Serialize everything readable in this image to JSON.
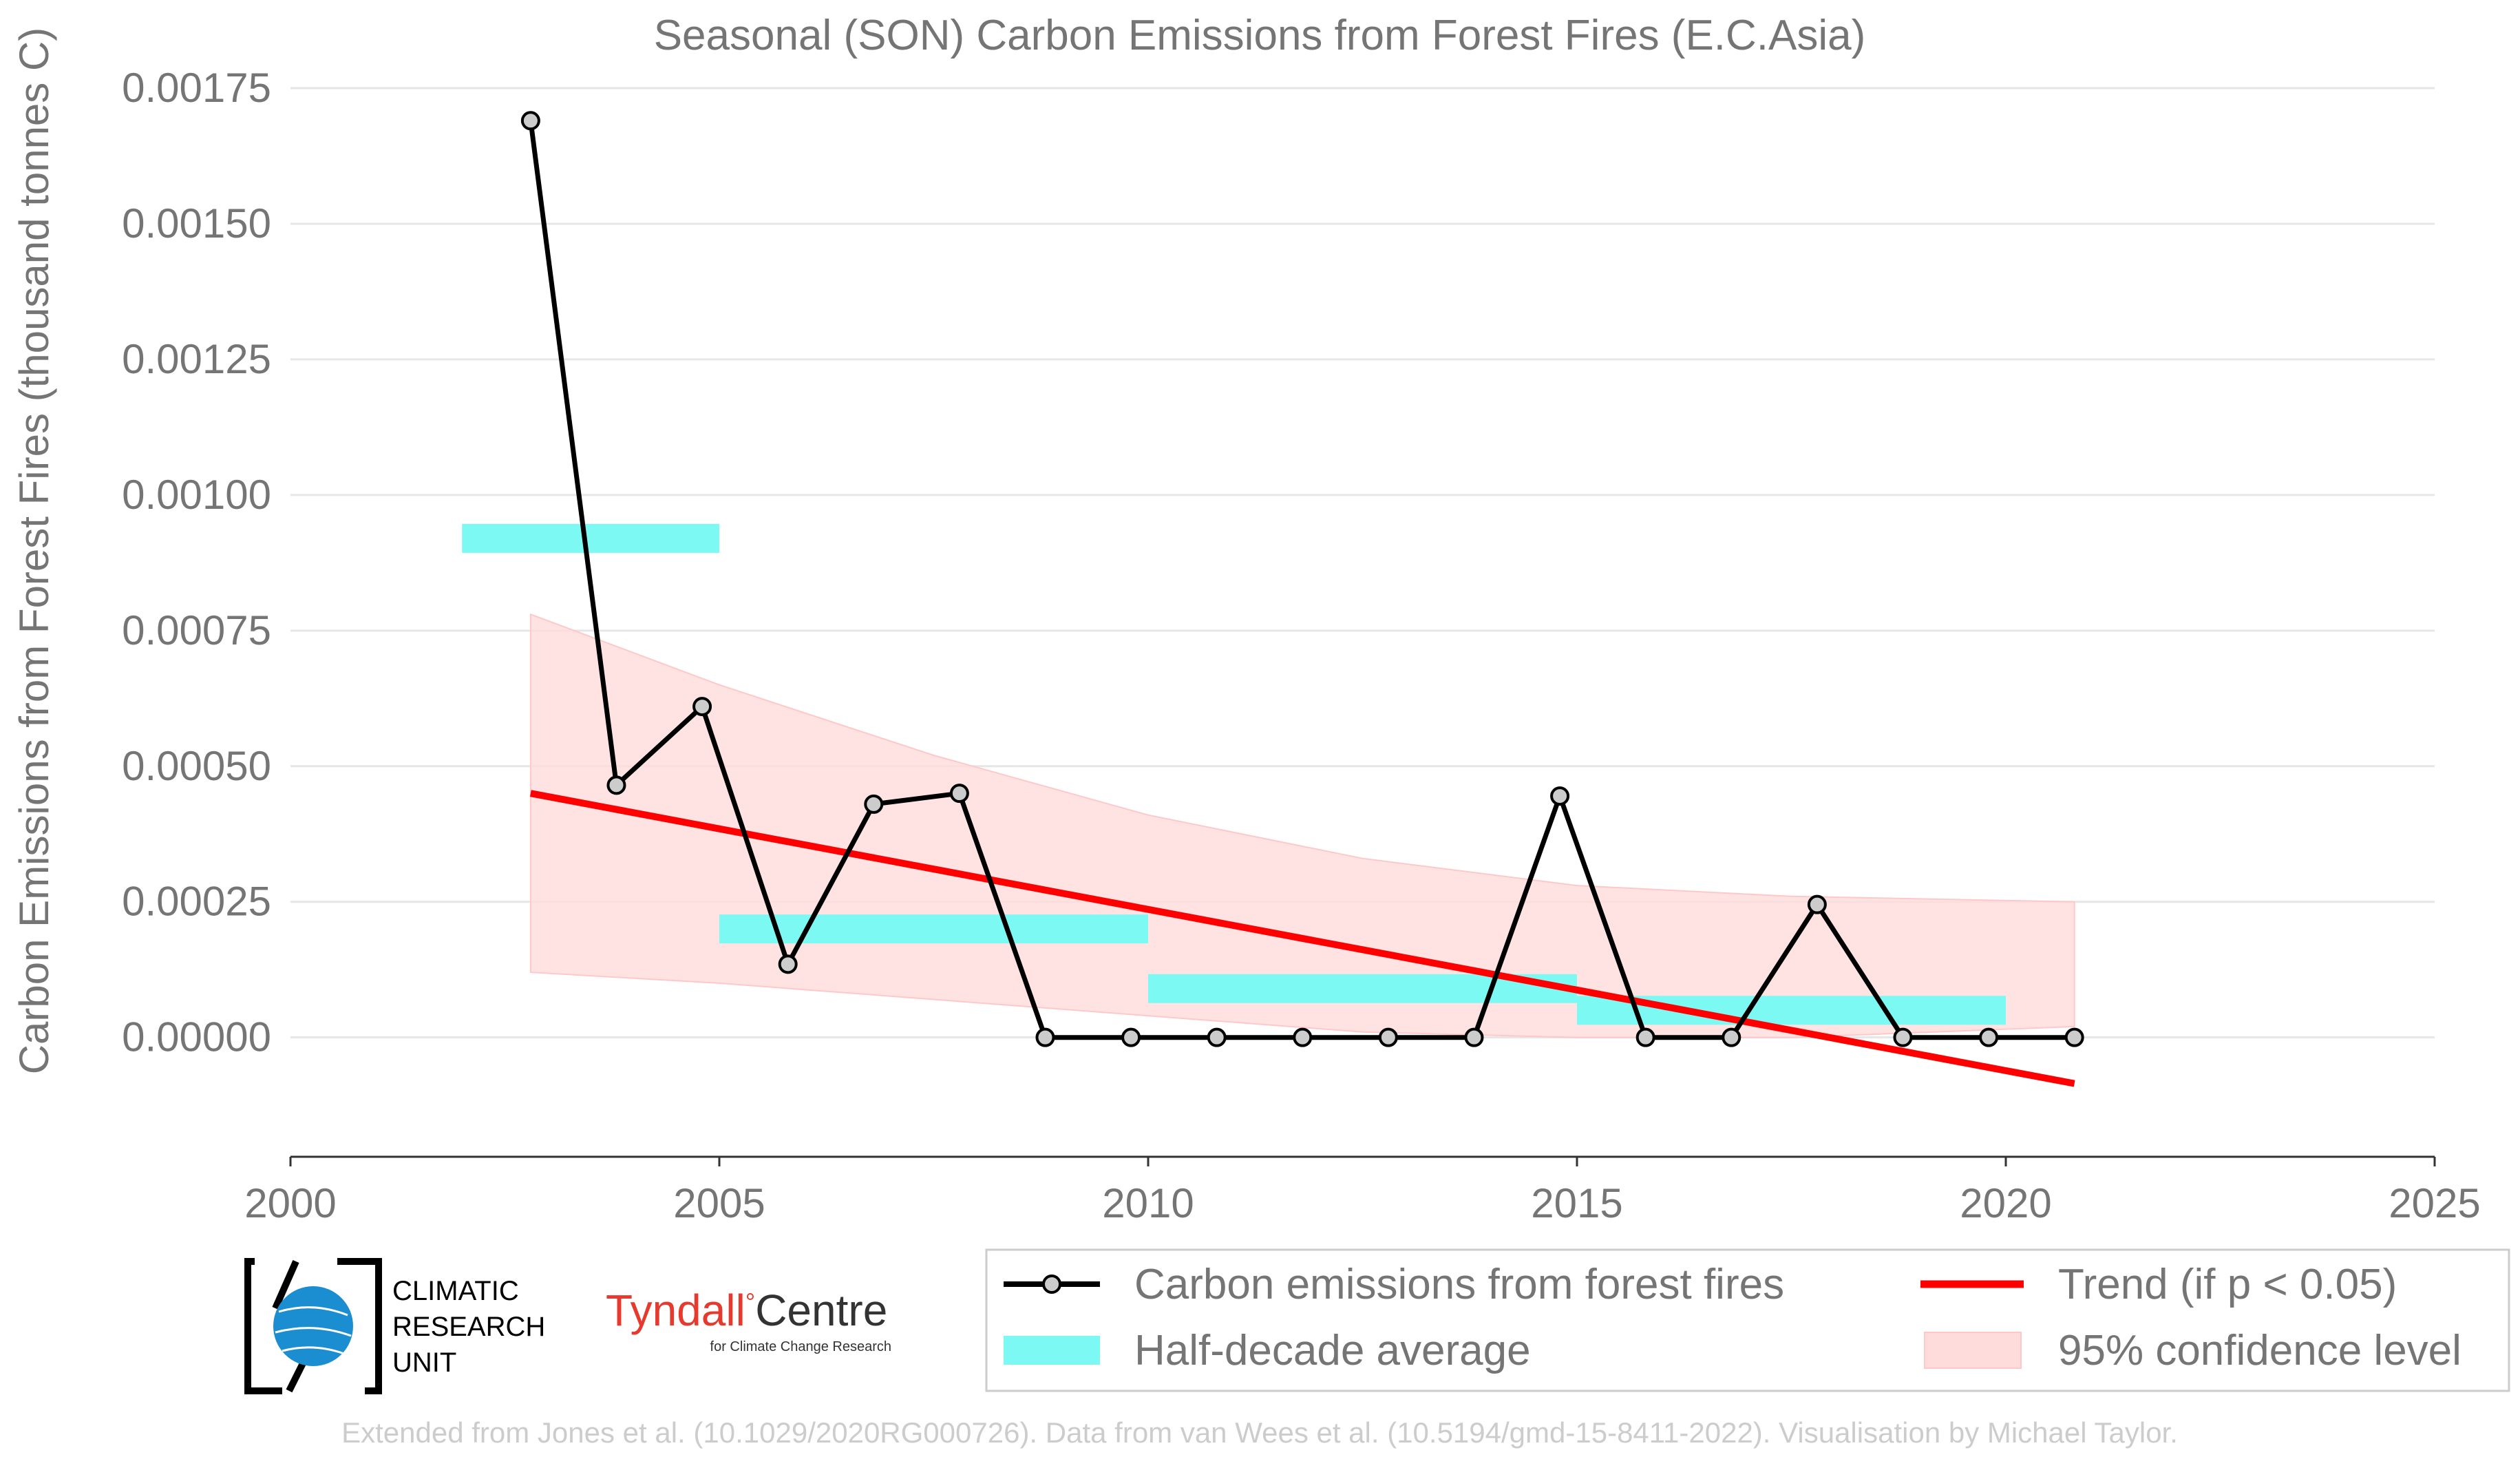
{
  "chart_data": {
    "type": "line",
    "title": "Seasonal (SON) Carbon Emissions from Forest Fires (E.C.Asia)",
    "xlabel": "",
    "ylabel": "Carbon Emissions from Forest Fires (thousand tonnes C)",
    "xlim": [
      2000,
      2025
    ],
    "ylim": [
      -0.00022,
      0.00175
    ],
    "x_ticks": [
      "2000",
      "2005",
      "2010",
      "2015",
      "2020",
      "2025"
    ],
    "y_ticks": [
      "0.00000",
      "0.00025",
      "0.00050",
      "0.00075",
      "0.00100",
      "0.00125",
      "0.00150",
      "0.00175"
    ],
    "grid": "horizontal",
    "legend_position": "bottom-right",
    "series": [
      {
        "name": "Carbon emissions from forest fires",
        "color": "#000000",
        "x": [
          2002.8,
          2003.8,
          2004.8,
          2005.8,
          2006.8,
          2007.8,
          2008.8,
          2009.8,
          2010.8,
          2011.8,
          2012.8,
          2013.8,
          2014.8,
          2015.8,
          2016.8,
          2017.8,
          2018.8,
          2019.8,
          2020.8
        ],
        "y": [
          0.00169,
          0.000465,
          0.00061,
          0.000135,
          0.00043,
          0.00045,
          0.0,
          0.0,
          0.0,
          0.0,
          0.0,
          0.0,
          0.000445,
          0.0,
          0.0,
          0.000245,
          0.0,
          0.0,
          0.0
        ]
      },
      {
        "name": "Trend (if p < 0.05)",
        "color": "#ff0000",
        "x": [
          2002.8,
          2020.8
        ],
        "y": [
          0.00045,
          -8.5e-05
        ]
      },
      {
        "name": "Half-decade average",
        "color": "#7df9f4",
        "segments": [
          {
            "x0": 2002,
            "x1": 2005,
            "y": 0.00092
          },
          {
            "x0": 2005,
            "x1": 2010,
            "y": 0.0002
          },
          {
            "x0": 2010,
            "x1": 2015,
            "y": 9e-05
          },
          {
            "x0": 2015,
            "x1": 2020,
            "y": 5e-05
          }
        ]
      },
      {
        "name": "95% confidence level",
        "color": "#ffdcdc",
        "x": [
          2002.8,
          2005,
          2007.5,
          2010,
          2012.5,
          2015,
          2017.5,
          2020.8
        ],
        "upper": [
          0.00078,
          0.00065,
          0.00052,
          0.00041,
          0.00033,
          0.00028,
          0.00026,
          0.00025
        ],
        "lower": [
          0.00012,
          0.0001,
          7e-05,
          4e-05,
          1e-05,
          0.0,
          0.0,
          2e-05
        ]
      }
    ]
  },
  "legend": {
    "emissions": "Carbon emissions from forest fires",
    "trend": "Trend (if p < 0.05)",
    "half_decade": "Half-decade average",
    "confidence": "95% confidence level"
  },
  "logos": {
    "cru_line1": "CLIMATIC",
    "cru_line2": "RESEARCH",
    "cru_line3": "UNIT",
    "tyndall_main": "Tyndall",
    "tyndall_degree": "°",
    "tyndall_centre": "Centre",
    "tyndall_sub": "for Climate Change Research"
  },
  "credit": "Extended from Jones et al. (10.1029/2020RG000726). Data from van Wees et al. (10.5194/gmd-15-8411-2022). Visualisation by Michael Taylor."
}
